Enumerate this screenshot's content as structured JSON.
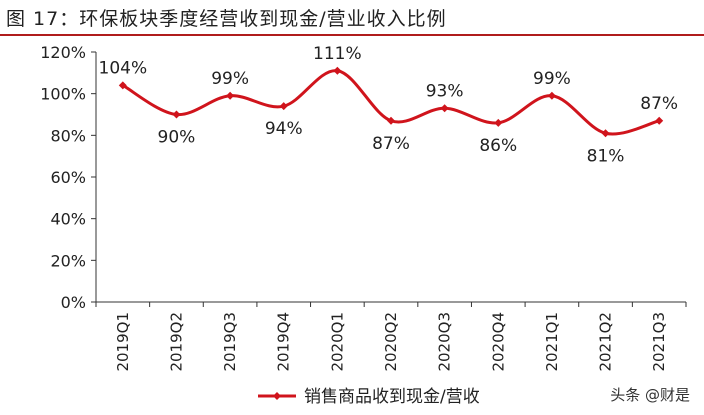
{
  "figure": {
    "title": "图 17：环保板块季度经营收到现金/营业收入比例"
  },
  "chart_data": {
    "type": "line",
    "categories": [
      "2019Q1",
      "2019Q2",
      "2019Q3",
      "2019Q4",
      "2020Q1",
      "2020Q2",
      "2020Q3",
      "2020Q4",
      "2021Q1",
      "2021Q2",
      "2021Q3"
    ],
    "series": [
      {
        "name": "销售商品收到现金/营收",
        "values": [
          104,
          90,
          99,
          94,
          111,
          87,
          93,
          86,
          99,
          81,
          87
        ],
        "labels": [
          "104%",
          "90%",
          "99%",
          "94%",
          "111%",
          "87%",
          "93%",
          "86%",
          "99%",
          "81%",
          "87%"
        ]
      }
    ],
    "ylim": [
      0,
      120
    ],
    "yticks": [
      0,
      20,
      40,
      60,
      80,
      100,
      120
    ],
    "ytick_labels": [
      "0%",
      "20%",
      "40%",
      "60%",
      "80%",
      "100%",
      "120%"
    ],
    "line_color": "#d0141c",
    "smooth": true,
    "grid": false,
    "legend_position": "bottom"
  },
  "watermark": "头条 @财是"
}
